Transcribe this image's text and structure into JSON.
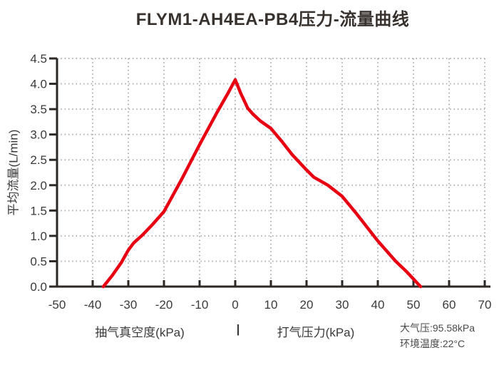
{
  "title": "FLYM1-AH4EA-PB4压力-流量曲线",
  "axes": {
    "y_label": "平均流量(L/min)",
    "x_label_left": "抽气真空度(kPa)",
    "x_label_separator": "|",
    "x_label_right": "打气压力(kPa)"
  },
  "notes": {
    "atmospheric_pressure": "大气压:95.58kPa",
    "ambient_temperature": "环境温度:22°C"
  },
  "colors": {
    "curve": "#e60012",
    "axis": "#2b2826",
    "grid": "#b0aeae",
    "text": "#3a3a3a"
  },
  "chart_data": {
    "type": "line",
    "title": "FLYM1-AH4EA-PB4压力-流量曲线",
    "xlabel": "抽气真空度(kPa) | 打气压力(kPa)",
    "ylabel": "平均流量(L/min)",
    "xlim": [
      -50,
      70
    ],
    "ylim": [
      0,
      4.5
    ],
    "x_ticks": [
      -50,
      -40,
      -30,
      -20,
      -10,
      0,
      10,
      20,
      30,
      40,
      50,
      60,
      70
    ],
    "y_ticks": [
      0.0,
      0.5,
      1.0,
      1.5,
      2.0,
      2.5,
      3.0,
      3.5,
      4.0,
      4.5
    ],
    "grid": "dotted",
    "legend": "none",
    "series": [
      {
        "name": "压力-流量曲线",
        "color": "#e60012",
        "points": [
          [
            -37,
            0
          ],
          [
            -34.5,
            0.22
          ],
          [
            -32,
            0.47
          ],
          [
            -30,
            0.72
          ],
          [
            -28.5,
            0.86
          ],
          [
            -26,
            1.02
          ],
          [
            -23,
            1.24
          ],
          [
            -20,
            1.48
          ],
          [
            -15,
            2.12
          ],
          [
            -10,
            2.8
          ],
          [
            -5,
            3.45
          ],
          [
            -2,
            3.82
          ],
          [
            0,
            4.08
          ],
          [
            1.5,
            3.82
          ],
          [
            3.5,
            3.52
          ],
          [
            5,
            3.4
          ],
          [
            7,
            3.27
          ],
          [
            10,
            3.12
          ],
          [
            13,
            2.87
          ],
          [
            16,
            2.6
          ],
          [
            20,
            2.3
          ],
          [
            22,
            2.16
          ],
          [
            26,
            2.0
          ],
          [
            30,
            1.78
          ],
          [
            34,
            1.44
          ],
          [
            38,
            1.08
          ],
          [
            40,
            0.9
          ],
          [
            45,
            0.5
          ],
          [
            48,
            0.3
          ],
          [
            52,
            0
          ]
        ]
      }
    ],
    "annotations": [
      "大气压:95.58kPa",
      "环境温度:22°C"
    ]
  }
}
